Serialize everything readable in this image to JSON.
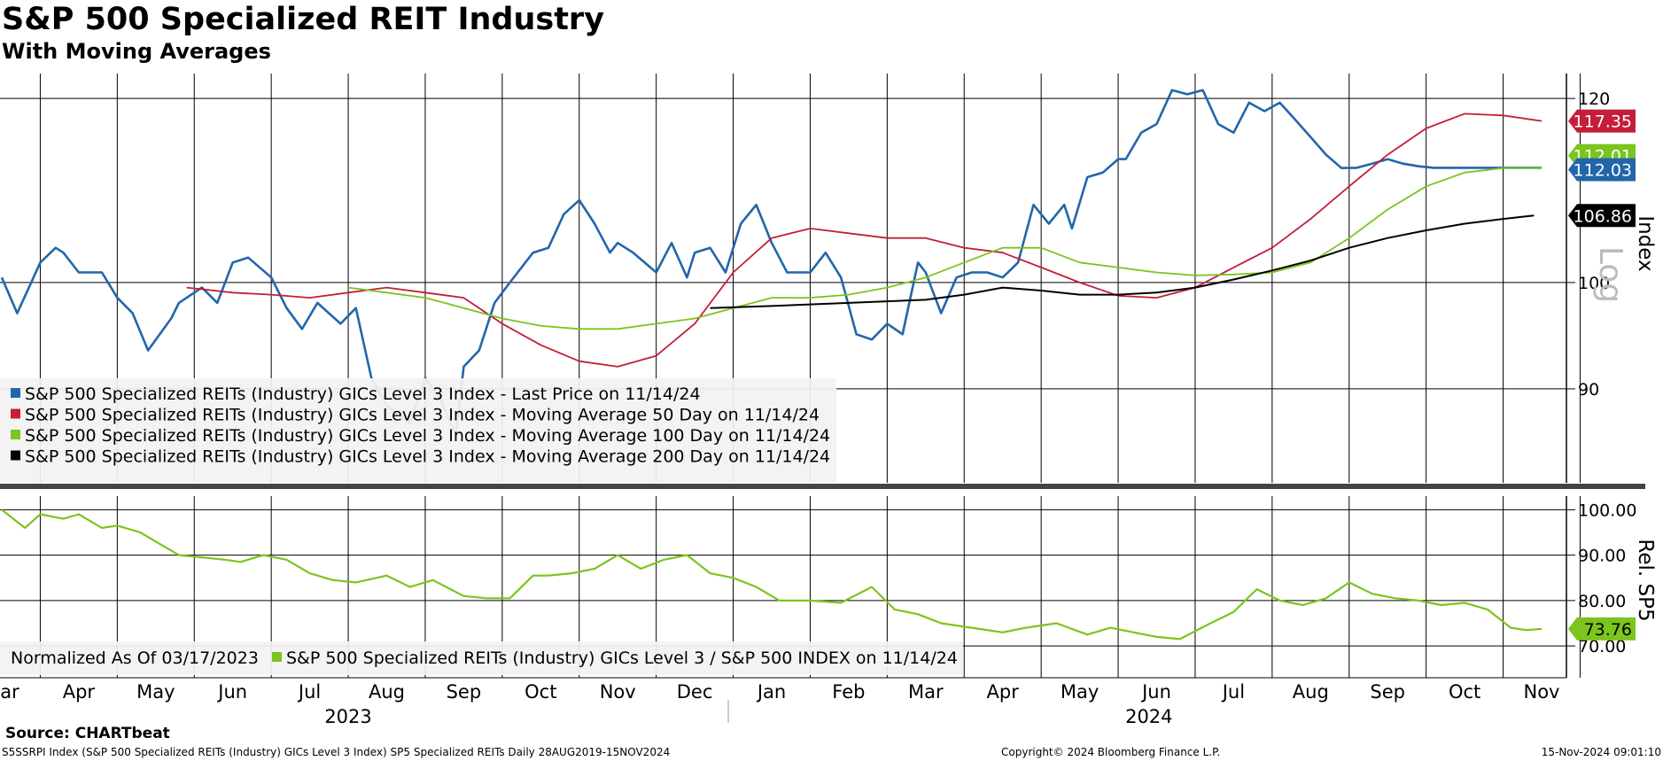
{
  "title": "S&P 500 Specialized REIT Industry",
  "subtitle": "With Moving Averages",
  "source": "Source: CHARTbeat",
  "footer": {
    "left": "S5SSRPI Index (S&P 500 Specialized REITs (Industry) GICs Level 3 Index) SP5 Specialized REITs  Daily 28AUG2019-15NOV2024",
    "copyright": "Copyright© 2024 Bloomberg Finance L.P.",
    "timestamp": "15-Nov-2024 09:01:10"
  },
  "colors": {
    "last_price": "#2266aa",
    "ma50": "#c41e3a",
    "ma100": "#7cc41e",
    "ma200": "#000000",
    "relative": "#7cc41e"
  },
  "chart_data": [
    {
      "type": "line",
      "title": "S&P 500 Specialized REIT Industry",
      "ylabel": "Index",
      "scale_label": "Log",
      "ylim": [
        82,
        123
      ],
      "ytick_values": [
        90,
        100,
        120
      ],
      "ytick_labels": [
        "90",
        "100",
        "120"
      ],
      "xlim": [
        0,
        20.3
      ],
      "x_month_labels": [
        "Mar",
        "Apr",
        "May",
        "Jun",
        "Jul",
        "Aug",
        "Sep",
        "Oct",
        "Nov",
        "Dec",
        "Jan",
        "Feb",
        "Mar",
        "Apr",
        "May",
        "Jun",
        "Jul",
        "Aug",
        "Sep",
        "Oct",
        "Nov"
      ],
      "year_labels": [
        {
          "label": "2023",
          "x": 4.5
        },
        {
          "label": "2024",
          "x": 14.9
        }
      ],
      "series": [
        {
          "name": "S&P 500 Specialized REITs (Industry) GICs Level 3 Index - Last Price on 11/14/24",
          "key": "last",
          "last_value": "112.03",
          "x": [
            0,
            0.2,
            0.5,
            0.7,
            0.8,
            1.0,
            1.3,
            1.5,
            1.7,
            1.9,
            2.2,
            2.3,
            2.6,
            2.8,
            3.0,
            3.2,
            3.5,
            3.7,
            3.9,
            4.1,
            4.4,
            4.6,
            4.8,
            5.0,
            5.3,
            5.5,
            5.7,
            5.9,
            6.0,
            6.2,
            6.4,
            6.6,
            6.9,
            7.1,
            7.3,
            7.5,
            7.7,
            7.9,
            8.0,
            8.2,
            8.5,
            8.7,
            8.9,
            9.0,
            9.2,
            9.4,
            9.6,
            9.8,
            10.0,
            10.2,
            10.5,
            10.7,
            10.9,
            11.1,
            11.3,
            11.5,
            11.7,
            11.9,
            12.0,
            12.2,
            12.4,
            12.6,
            12.8,
            13.0,
            13.2,
            13.4,
            13.6,
            13.8,
            13.9,
            14.1,
            14.3,
            14.5,
            14.6,
            14.8,
            15.0,
            15.2,
            15.4,
            15.6,
            15.8,
            16.0,
            16.2,
            16.4,
            16.6,
            16.8,
            17.0,
            17.2,
            17.4,
            17.6,
            17.8,
            18.0,
            18.2,
            18.4,
            18.6,
            18.8,
            19.0,
            19.2,
            19.4,
            19.5,
            19.7,
            19.9,
            20.0
          ],
          "values": [
            100.5,
            97,
            102,
            103.5,
            103,
            101,
            101,
            98.5,
            97,
            93.5,
            96.5,
            98,
            99.5,
            98,
            102,
            102.5,
            100.5,
            97.5,
            95.5,
            98,
            96,
            97.5,
            91,
            88.5,
            87,
            91,
            89,
            86,
            92,
            93.5,
            98,
            100,
            103,
            103.5,
            107,
            108.5,
            106,
            103,
            104,
            103,
            101,
            104,
            100.5,
            103,
            103.5,
            101,
            106,
            108,
            104,
            101,
            101,
            103,
            100.5,
            95,
            94.5,
            96,
            95,
            102,
            101,
            97,
            100.5,
            101,
            101,
            100.5,
            102,
            108,
            106,
            108,
            105.5,
            111,
            111.5,
            113,
            113,
            116,
            117,
            121,
            120.5,
            121,
            117,
            116,
            119.5,
            118.5,
            119.5,
            117.5,
            115.5,
            113.5,
            112,
            112.03,
            112.5,
            113,
            112.5,
            112.2,
            112.03,
            112.03,
            112.03,
            112.03,
            112.03,
            112.03,
            112.03,
            112.03,
            112.03
          ]
        },
        {
          "name": "S&P 500 Specialized REITs (Industry) GICs Level 3 Index - Moving Average 50 Day on 11/14/24",
          "key": "ma50",
          "last_value": "117.35",
          "x": [
            2.4,
            3,
            3.5,
            4,
            4.5,
            5,
            5.5,
            6,
            6.5,
            7,
            7.5,
            8,
            8.5,
            9,
            9.5,
            10,
            10.5,
            11,
            11.5,
            12,
            12.5,
            13,
            13.5,
            14,
            14.5,
            15,
            15.5,
            16,
            16.5,
            17,
            17.5,
            18,
            18.5,
            19,
            19.5,
            20
          ],
          "values": [
            99.5,
            99,
            98.8,
            98.5,
            99,
            99.5,
            99,
            98.5,
            96,
            94,
            92.5,
            92,
            93,
            96,
            101,
            104.5,
            105.5,
            105,
            104.5,
            104.5,
            103.5,
            103,
            101.5,
            100,
            98.7,
            98.5,
            99.5,
            101.5,
            103.5,
            106.5,
            110,
            113.5,
            116.5,
            118.2,
            118,
            117.35
          ]
        },
        {
          "name": "S&P 500 Specialized REITs (Industry) GICs Level 3 Index - Moving Average 100 Day on 11/14/24",
          "key": "ma100",
          "last_value": "112.01",
          "x": [
            4.5,
            5,
            5.5,
            6,
            6.5,
            7,
            7.5,
            8,
            8.5,
            9,
            9.5,
            10,
            10.5,
            11,
            11.5,
            12,
            12.5,
            13,
            13.5,
            14,
            14.5,
            15,
            15.5,
            16,
            16.5,
            17,
            17.5,
            18,
            18.5,
            19,
            19.5,
            20
          ],
          "values": [
            99.5,
            99,
            98.5,
            97.5,
            96.5,
            95.8,
            95.5,
            95.5,
            96,
            96.5,
            97.5,
            98.5,
            98.5,
            98.8,
            99.5,
            100.5,
            102,
            103.5,
            103.5,
            102,
            101.5,
            101,
            100.7,
            100.8,
            101,
            102,
            104.5,
            107.5,
            110,
            111.5,
            112,
            112.01
          ]
        },
        {
          "name": "S&P 500 Specialized REITs (Industry) GICs Level 3 Index - Moving Average 200 Day on 11/14/24",
          "key": "ma200",
          "last_value": "106.86",
          "x": [
            9.2,
            10,
            11,
            12,
            12.5,
            13,
            13.5,
            14,
            14.5,
            15,
            15.5,
            16,
            16.5,
            17,
            17.5,
            18,
            18.5,
            19,
            19.5,
            19.9
          ],
          "values": [
            97.5,
            97.7,
            98,
            98.3,
            98.8,
            99.5,
            99.2,
            98.8,
            98.8,
            99,
            99.5,
            100.3,
            101.2,
            102.2,
            103.5,
            104.5,
            105.3,
            106,
            106.5,
            106.86
          ]
        }
      ]
    },
    {
      "type": "line",
      "ylabel": "Rel. SP5",
      "ylim": [
        63,
        103
      ],
      "ytick_values": [
        70,
        80,
        90,
        100
      ],
      "ytick_labels": [
        "70.00",
        "80.00",
        "90.00",
        "100.00"
      ],
      "annotation": "Normalized As Of 03/17/2023",
      "series": [
        {
          "name": "S&P 500 Specialized REITs (Industry) GICs Level 3 / S&P 500 INDEX on 11/14/24",
          "key": "rel",
          "last_value": "73.76",
          "x": [
            0,
            0.3,
            0.5,
            0.8,
            1.0,
            1.3,
            1.5,
            1.8,
            2.0,
            2.3,
            2.6,
            2.9,
            3.1,
            3.4,
            3.7,
            4.0,
            4.3,
            4.6,
            5.0,
            5.3,
            5.6,
            6.0,
            6.3,
            6.6,
            6.9,
            7.1,
            7.4,
            7.7,
            8.0,
            8.3,
            8.6,
            8.9,
            9.2,
            9.5,
            9.8,
            10.1,
            10.5,
            10.9,
            11.3,
            11.6,
            11.9,
            12.2,
            12.6,
            13.0,
            13.3,
            13.7,
            14.1,
            14.4,
            14.7,
            15.0,
            15.3,
            15.7,
            16.0,
            16.3,
            16.6,
            16.9,
            17.2,
            17.5,
            17.8,
            18.1,
            18.4,
            18.7,
            19.0,
            19.3,
            19.6,
            19.8,
            20.0
          ],
          "values": [
            100,
            96,
            99,
            98,
            99,
            96,
            96.5,
            95,
            93,
            90,
            89.5,
            89,
            88.5,
            90,
            89,
            86,
            84.5,
            84,
            85.5,
            83,
            84.5,
            81,
            80.5,
            80.5,
            85.5,
            85.5,
            86,
            87,
            90,
            87,
            89,
            90,
            86,
            85,
            83,
            80,
            80,
            79.5,
            83,
            78,
            77,
            75,
            74,
            73,
            74,
            75,
            72.5,
            74,
            73,
            72,
            71.5,
            75,
            77.5,
            82.5,
            80,
            79,
            80.5,
            84,
            81.5,
            80.5,
            80,
            79,
            79.5,
            78,
            74,
            73.5,
            73.76
          ]
        }
      ]
    }
  ]
}
